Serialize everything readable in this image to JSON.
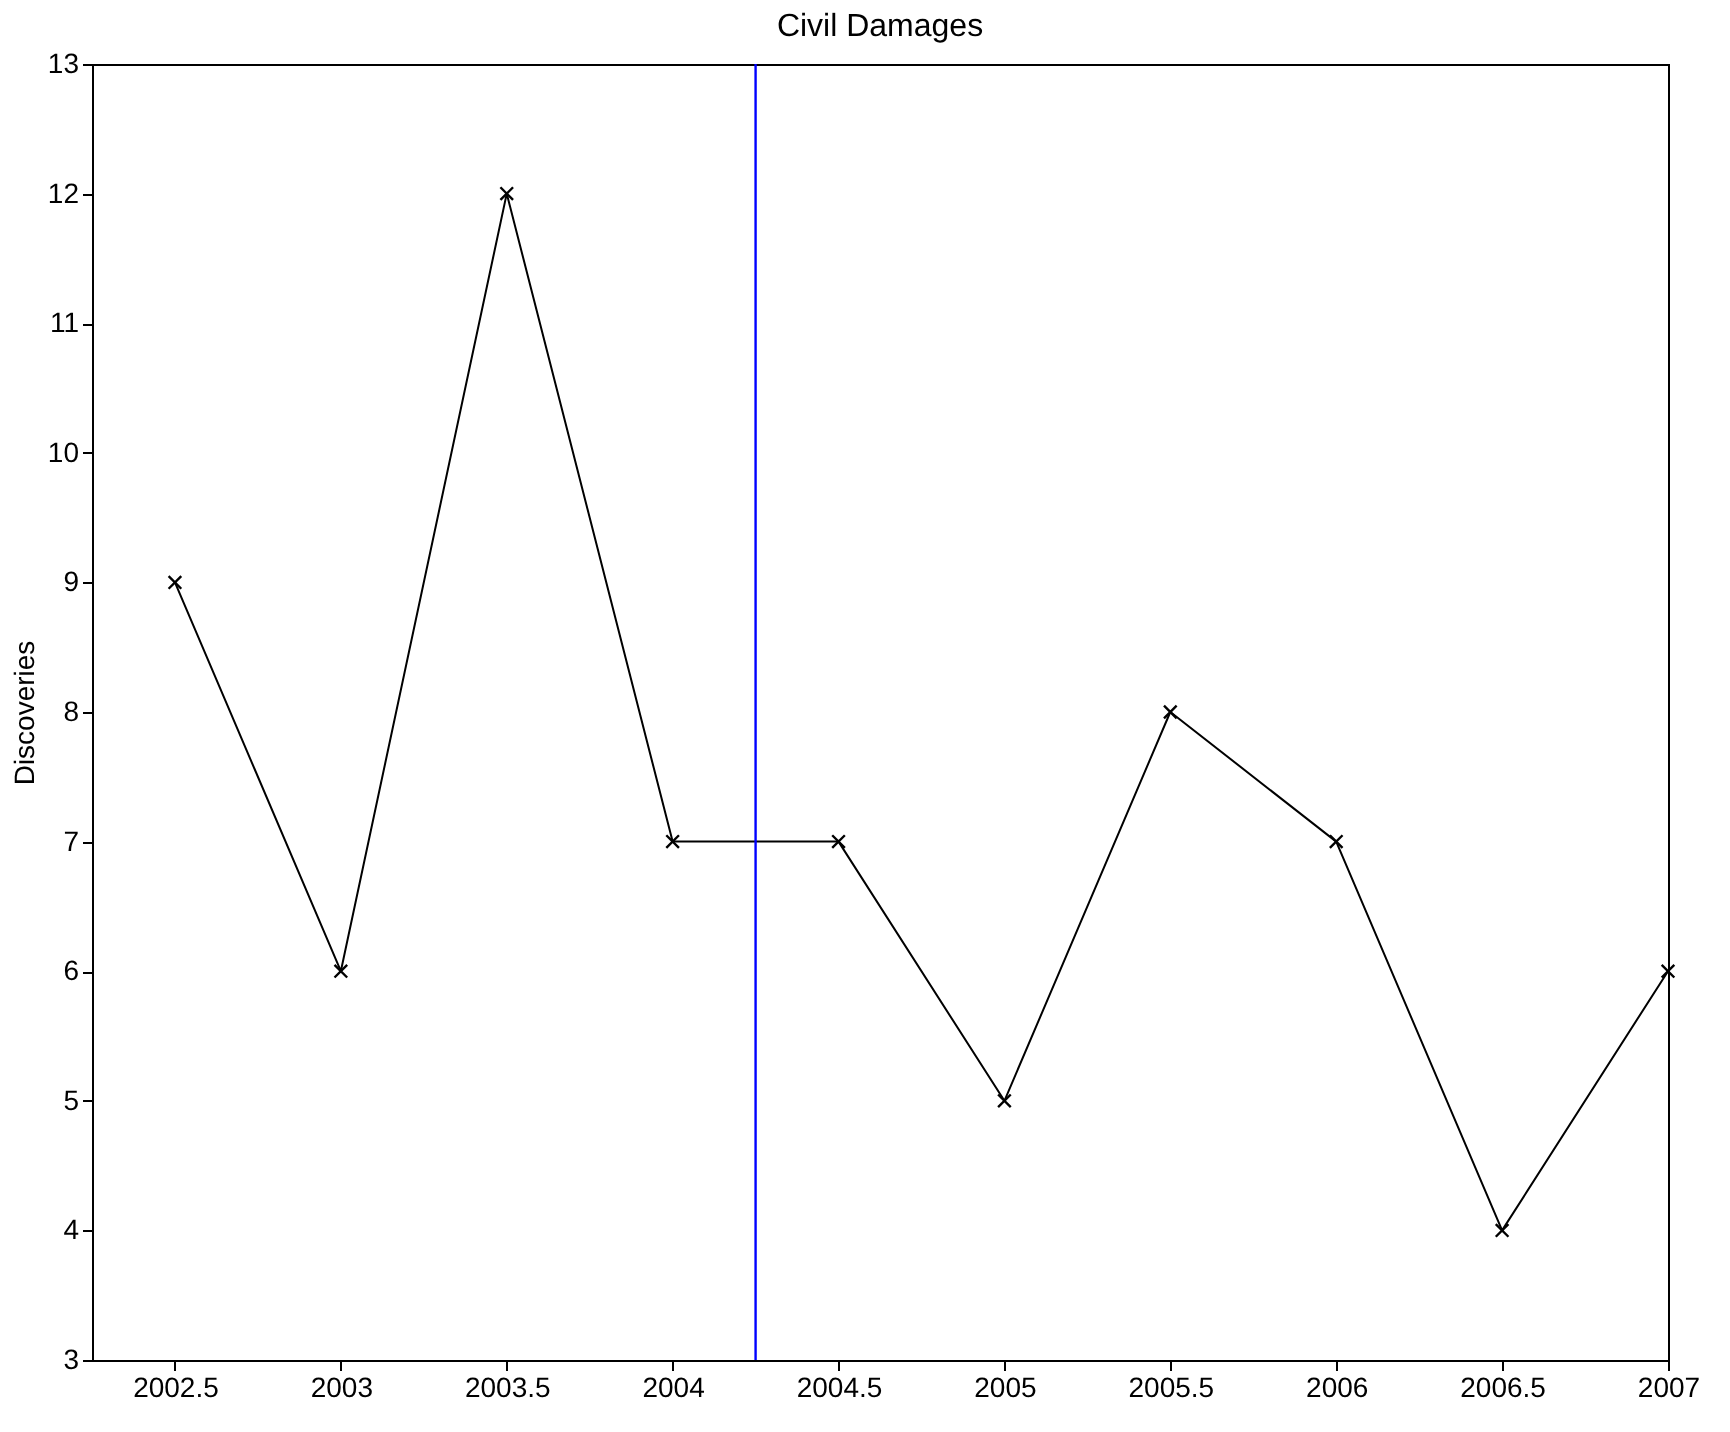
{
  "chart_data": {
    "type": "line",
    "title": "Civil Damages",
    "ylabel": "Discoveries",
    "x": [
      2002.5,
      2003,
      2003.5,
      2004,
      2004.5,
      2005,
      2005.5,
      2006,
      2006.5,
      2007
    ],
    "series": [
      {
        "color": "#000000",
        "values": [
          9,
          6,
          12,
          7,
          7,
          5,
          8,
          7,
          4,
          6
        ]
      }
    ],
    "xlim": [
      2002.25,
      2007
    ],
    "xticks": [
      2002.5,
      2003,
      2003.5,
      2004,
      2004.5,
      2005,
      2005.5,
      2006,
      2006.5,
      2007
    ],
    "ylim": [
      3,
      13
    ],
    "yticks": [
      3,
      4,
      5,
      6,
      7,
      8,
      9,
      10,
      11,
      12,
      13
    ],
    "ref_lines": [
      {
        "axis": "x",
        "value": 2004.25,
        "color": "#0000ff"
      }
    ],
    "marker": "cross",
    "line_style": "solid",
    "grid": false
  }
}
